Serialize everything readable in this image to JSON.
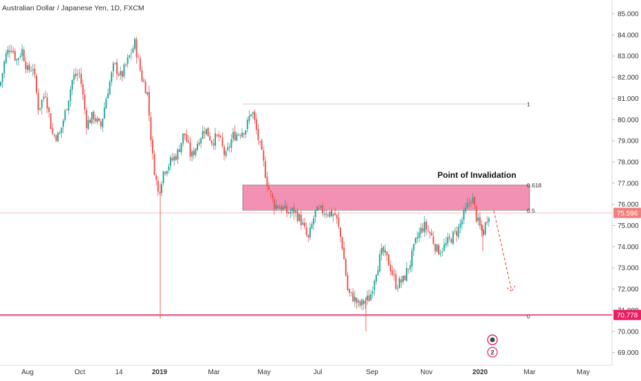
{
  "chart_data": {
    "type": "candlestick",
    "title": "Australian Dollar / Japanese Yen, 1D, FXCM",
    "xlabel": "",
    "ylabel": "",
    "ylim": [
      68.7,
      85.3
    ],
    "x_ticks": [
      {
        "label": "Aug",
        "bold": false
      },
      {
        "label": "Oct",
        "bold": false
      },
      {
        "label": "14",
        "bold": false
      },
      {
        "label": "2019",
        "bold": true
      },
      {
        "label": "Mar",
        "bold": false
      },
      {
        "label": "May",
        "bold": false
      },
      {
        "label": "Jul",
        "bold": false
      },
      {
        "label": "Sep",
        "bold": false
      },
      {
        "label": "Nov",
        "bold": false
      },
      {
        "label": "2020",
        "bold": true
      },
      {
        "label": "Mar",
        "bold": false
      },
      {
        "label": "May",
        "bold": false
      }
    ],
    "y_ticks": [
      "85.000",
      "84.000",
      "83.000",
      "82.000",
      "81.000",
      "80.000",
      "79.000",
      "78.000",
      "77.000",
      "76.000",
      "75.000",
      "74.000",
      "73.000",
      "72.000",
      "71.000",
      "70.000",
      "69.000"
    ],
    "y_tick_values": [
      85,
      84,
      83,
      82,
      81,
      80,
      79,
      78,
      77,
      76,
      75,
      74,
      73,
      72,
      71,
      70,
      69
    ],
    "series_close_path": [
      {
        "x": 0,
        "y": 81.6
      },
      {
        "x": 8,
        "y": 83.0
      },
      {
        "x": 16,
        "y": 83.5
      },
      {
        "x": 24,
        "y": 82.8
      },
      {
        "x": 32,
        "y": 83.3
      },
      {
        "x": 40,
        "y": 82.3
      },
      {
        "x": 48,
        "y": 82.5
      },
      {
        "x": 56,
        "y": 80.5
      },
      {
        "x": 66,
        "y": 81.3
      },
      {
        "x": 76,
        "y": 79.3
      },
      {
        "x": 86,
        "y": 79.2
      },
      {
        "x": 96,
        "y": 80.5
      },
      {
        "x": 106,
        "y": 82.0
      },
      {
        "x": 116,
        "y": 82.2
      },
      {
        "x": 126,
        "y": 79.8
      },
      {
        "x": 136,
        "y": 80.2
      },
      {
        "x": 146,
        "y": 79.6
      },
      {
        "x": 156,
        "y": 81.3
      },
      {
        "x": 166,
        "y": 82.6
      },
      {
        "x": 176,
        "y": 82.0
      },
      {
        "x": 186,
        "y": 82.8
      },
      {
        "x": 196,
        "y": 83.6
      },
      {
        "x": 206,
        "y": 82.0
      },
      {
        "x": 214,
        "y": 81.3
      },
      {
        "x": 222,
        "y": 78.2
      },
      {
        "x": 230,
        "y": 76.5
      },
      {
        "x": 238,
        "y": 77.6
      },
      {
        "x": 248,
        "y": 78.0
      },
      {
        "x": 258,
        "y": 78.4
      },
      {
        "x": 268,
        "y": 79.4
      },
      {
        "x": 278,
        "y": 78.2
      },
      {
        "x": 288,
        "y": 79.0
      },
      {
        "x": 298,
        "y": 79.6
      },
      {
        "x": 308,
        "y": 79.0
      },
      {
        "x": 318,
        "y": 79.2
      },
      {
        "x": 328,
        "y": 78.2
      },
      {
        "x": 338,
        "y": 79.2
      },
      {
        "x": 348,
        "y": 79.4
      },
      {
        "x": 358,
        "y": 79.6
      },
      {
        "x": 366,
        "y": 80.5
      },
      {
        "x": 374,
        "y": 79.3
      },
      {
        "x": 382,
        "y": 78.1
      },
      {
        "x": 390,
        "y": 76.8
      },
      {
        "x": 398,
        "y": 76.0
      },
      {
        "x": 408,
        "y": 75.9
      },
      {
        "x": 418,
        "y": 75.6
      },
      {
        "x": 428,
        "y": 75.7
      },
      {
        "x": 438,
        "y": 75.2
      },
      {
        "x": 448,
        "y": 74.3
      },
      {
        "x": 458,
        "y": 75.6
      },
      {
        "x": 468,
        "y": 75.7
      },
      {
        "x": 478,
        "y": 75.6
      },
      {
        "x": 488,
        "y": 75.5
      },
      {
        "x": 498,
        "y": 74.0
      },
      {
        "x": 506,
        "y": 71.8
      },
      {
        "x": 514,
        "y": 71.6
      },
      {
        "x": 522,
        "y": 71.2
      },
      {
        "x": 530,
        "y": 71.4
      },
      {
        "x": 538,
        "y": 71.6
      },
      {
        "x": 546,
        "y": 72.8
      },
      {
        "x": 556,
        "y": 73.8
      },
      {
        "x": 566,
        "y": 73.2
      },
      {
        "x": 576,
        "y": 72.2
      },
      {
        "x": 586,
        "y": 72.4
      },
      {
        "x": 596,
        "y": 73.2
      },
      {
        "x": 606,
        "y": 74.4
      },
      {
        "x": 616,
        "y": 75.0
      },
      {
        "x": 626,
        "y": 74.6
      },
      {
        "x": 636,
        "y": 73.8
      },
      {
        "x": 646,
        "y": 74.0
      },
      {
        "x": 656,
        "y": 74.4
      },
      {
        "x": 666,
        "y": 74.8
      },
      {
        "x": 676,
        "y": 75.6
      },
      {
        "x": 686,
        "y": 76.4
      },
      {
        "x": 694,
        "y": 75.2
      },
      {
        "x": 702,
        "y": 74.6
      },
      {
        "x": 710,
        "y": 75.6
      }
    ],
    "current_price": {
      "label": "75.596",
      "value": 75.596,
      "color": "#f08080"
    },
    "support_level": {
      "label": "70.778",
      "value": 70.778,
      "color": "#e91e63"
    },
    "invalidation_zone": {
      "top": 76.92,
      "bottom": 75.72,
      "color": "#ee6c99"
    },
    "annotation": "Point of Invalidation",
    "fib_levels": [
      {
        "label": "1",
        "value": 80.74
      },
      {
        "label": "0.618",
        "value": 76.92
      },
      {
        "label": "0.5",
        "value": 75.72
      },
      {
        "label": "0",
        "value": 70.72
      }
    ],
    "projection_target": 71.9,
    "colors": {
      "up": "#26a69a",
      "down": "#ef5350",
      "axis_text": "#333333",
      "fib_line": "#9e9e9e"
    }
  },
  "widgets": {
    "badge_count": "2"
  }
}
